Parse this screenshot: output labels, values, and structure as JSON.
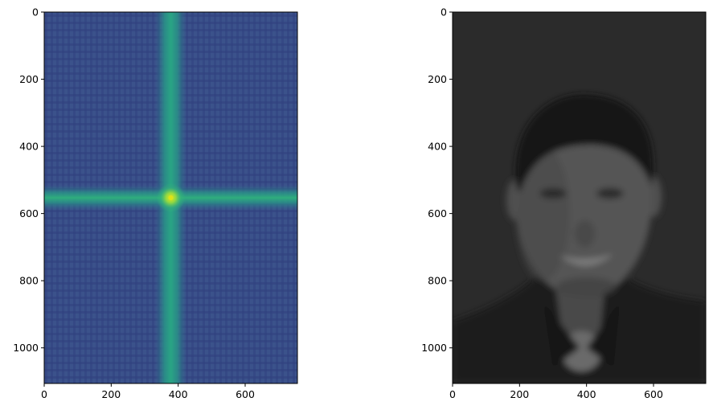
{
  "chart_data": [
    {
      "type": "heatmap",
      "content": "2D Fourier magnitude spectrum",
      "colormap": "viridis",
      "xlim": [
        0,
        756
      ],
      "ylim": [
        1106,
        0
      ],
      "xticks": [
        0,
        200,
        400,
        600
      ],
      "yticks": [
        0,
        200,
        400,
        600,
        800,
        1000
      ],
      "xtick_labels": [
        "0",
        "200",
        "400",
        "600"
      ],
      "ytick_labels": [
        "0",
        "200",
        "400",
        "600",
        "800",
        "1000"
      ],
      "center": {
        "x": 378,
        "y": 553
      },
      "grid": false
    },
    {
      "type": "heatmap",
      "content": "blurred grayscale portrait",
      "colormap": "gray",
      "xlim": [
        0,
        756
      ],
      "ylim": [
        1106,
        0
      ],
      "xticks": [
        0,
        200,
        400,
        600
      ],
      "yticks": [
        0,
        200,
        400,
        600,
        800,
        1000
      ],
      "xtick_labels": [
        "0",
        "200",
        "400",
        "600"
      ],
      "ytick_labels": [
        "0",
        "200",
        "400",
        "600",
        "800",
        "1000"
      ],
      "grid": false
    }
  ],
  "colors": {
    "viridis_dark": "#3b528b",
    "viridis_mid": "#2c8c8c",
    "viridis_bright": "#35b779",
    "viridis_peak": "#dde318",
    "gray_background": "#2b2b2b",
    "gray_face": "#555555",
    "gray_hair": "#151515"
  }
}
